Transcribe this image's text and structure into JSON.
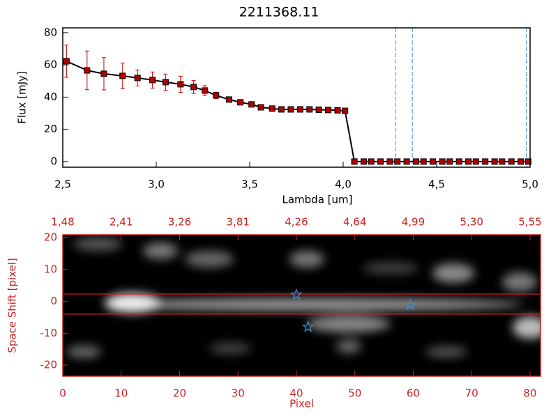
{
  "chart_data": [
    {
      "type": "line",
      "title": "2211368.11",
      "xlabel": "Lambda [um]",
      "ylabel": "Flux [mJy]",
      "axis_color": "#000000",
      "xlim": [
        2.5,
        5.0
      ],
      "ylim": [
        -3.5,
        83
      ],
      "xticks": [
        {
          "value": 2.5,
          "label": "2,5"
        },
        {
          "value": 3.0,
          "label": "3,0"
        },
        {
          "value": 3.5,
          "label": "3,5"
        },
        {
          "value": 4.0,
          "label": "4,0"
        },
        {
          "value": 4.5,
          "label": "4,5"
        },
        {
          "value": 5.0,
          "label": "5,0"
        }
      ],
      "yticks": [
        0,
        20,
        40,
        60,
        80
      ],
      "x": [
        2.52,
        2.63,
        2.72,
        2.82,
        2.9,
        2.98,
        3.05,
        3.13,
        3.2,
        3.26,
        3.32,
        3.39,
        3.45,
        3.51,
        3.56,
        3.62,
        3.67,
        3.72,
        3.77,
        3.82,
        3.87,
        3.92,
        3.97,
        4.01,
        4.06,
        4.11,
        4.15,
        4.2,
        4.25,
        4.29,
        4.34,
        4.39,
        4.43,
        4.48,
        4.53,
        4.57,
        4.62,
        4.67,
        4.71,
        4.76,
        4.81,
        4.85,
        4.9,
        4.95,
        4.99
      ],
      "series": [
        {
          "color": "#000000",
          "marker_color": "#b00000",
          "error_color": "#cc0000",
          "values": [
            62.3,
            56.6,
            54.5,
            53.2,
            51.9,
            50.6,
            49.3,
            48.0,
            46.3,
            44.1,
            41.1,
            38.5,
            36.8,
            35.5,
            33.7,
            32.9,
            32.4,
            32.4,
            32.4,
            32.4,
            32.2,
            32.0,
            31.8,
            31.5,
            0,
            0,
            0,
            0,
            0,
            0,
            0,
            0,
            0,
            0,
            0,
            0,
            0,
            0,
            0,
            0,
            0,
            0,
            0,
            0,
            0
          ],
          "errors": [
            10,
            12,
            10,
            8,
            5,
            5,
            5,
            5,
            4,
            3,
            2,
            1,
            1,
            1,
            1,
            1,
            1,
            1,
            1,
            1,
            1,
            1,
            1,
            1,
            0,
            0,
            0,
            0,
            0,
            0,
            0,
            0,
            0,
            0,
            0,
            0,
            0,
            0,
            0,
            0,
            0,
            0,
            0,
            0,
            0
          ]
        }
      ],
      "vlines": [
        4.28,
        4.37,
        4.98
      ],
      "vline_color": "#3a8fd8"
    },
    {
      "type": "image",
      "xlabel": "Pixel",
      "ylabel": "Space Shift [pixel]",
      "axis_color": "#cc2020",
      "xlim": [
        0,
        81.8
      ],
      "ylim": [
        -23.5,
        20.9
      ],
      "xticks": [
        0,
        10,
        20,
        30,
        40,
        50,
        60,
        70,
        80
      ],
      "x2ticks": [
        {
          "value": 0,
          "label": "1,48"
        },
        {
          "value": 10,
          "label": "2,41"
        },
        {
          "value": 20,
          "label": "3,26"
        },
        {
          "value": 30,
          "label": "3,81"
        },
        {
          "value": 40,
          "label": "4,26"
        },
        {
          "value": 50,
          "label": "4,64"
        },
        {
          "value": 60,
          "label": "4,99"
        },
        {
          "value": 70,
          "label": "5,30"
        },
        {
          "value": 80,
          "label": "5,55"
        }
      ],
      "yticks": [
        -20,
        -10,
        0,
        10,
        20
      ],
      "hlines": [
        2.3,
        -4.0
      ],
      "hline_color": "#cc2020",
      "markers": {
        "color": "#3a8fd8",
        "x": [
          40,
          59.5,
          42
        ],
        "y": [
          2.1,
          -1.2,
          -8
        ]
      }
    }
  ]
}
